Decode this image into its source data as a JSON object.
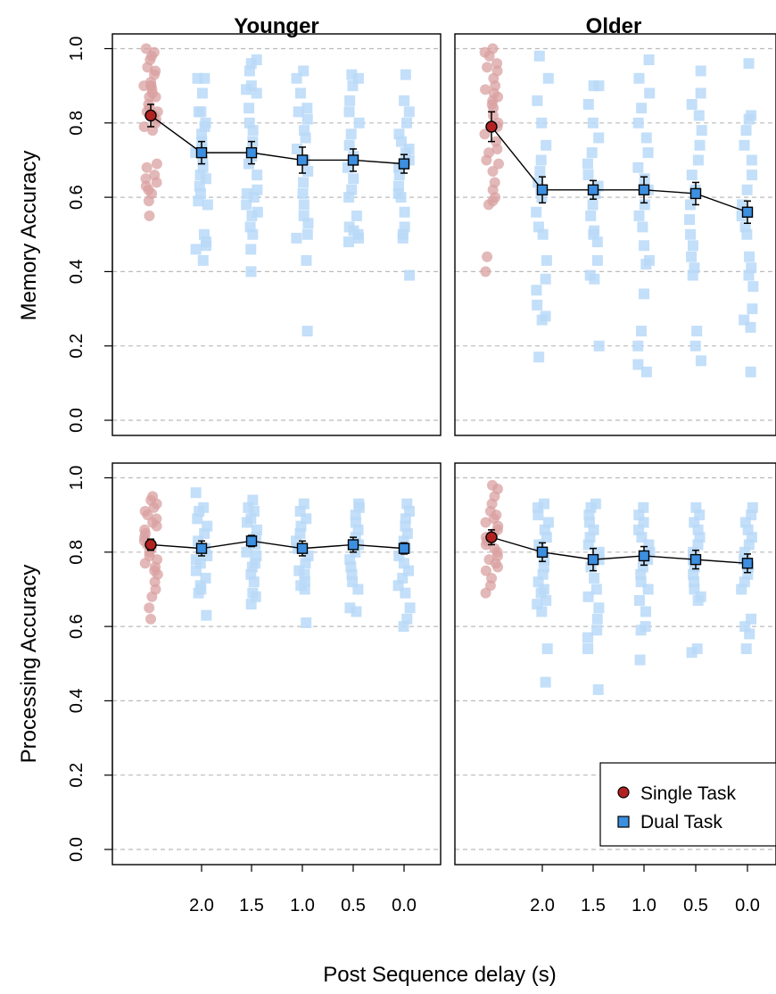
{
  "chart_data": {
    "type": "scatter",
    "xlabel": "Post Sequence delay (s)",
    "x_tick_labels": [
      "2.0",
      "1.5",
      "1.0",
      "0.5",
      "0.0"
    ],
    "y_ticks": [
      "0.0",
      "0.2",
      "0.4",
      "0.6",
      "0.8",
      "1.0"
    ],
    "ylim": [
      0,
      1
    ],
    "grid": "horizontal dashed at y ticks",
    "colors": {
      "single": "#B22222",
      "single_faded": "#D9A0A0",
      "dual": "#3D8FE0",
      "dual_faded": "#B8D9F8",
      "grid": "#BBBBBB"
    },
    "legend": {
      "position": "bottom-right",
      "entries": [
        {
          "label": "Single Task",
          "marker": "circle"
        },
        {
          "label": "Dual Task",
          "marker": "square"
        }
      ]
    },
    "columns": [
      {
        "title": "Younger"
      },
      {
        "title": "Older"
      }
    ],
    "rows": [
      {
        "ylabel": "Memory Accuracy"
      },
      {
        "ylabel": "Processing Accuracy"
      }
    ],
    "panels": [
      {
        "row": 0,
        "col": 0,
        "means": [
          0.82,
          0.72,
          0.72,
          0.7,
          0.7,
          0.69
        ],
        "errors": [
          0.03,
          0.03,
          0.03,
          0.035,
          0.03,
          0.025
        ],
        "single_points": [
          1.0,
          0.99,
          0.98,
          0.97,
          0.95,
          0.94,
          0.93,
          0.91,
          0.9,
          0.9,
          0.9,
          0.89,
          0.88,
          0.87,
          0.87,
          0.85,
          0.84,
          0.83,
          0.83,
          0.82,
          0.81,
          0.8,
          0.79,
          0.78,
          0.69,
          0.68,
          0.66,
          0.65,
          0.64,
          0.63,
          0.62,
          0.61,
          0.59,
          0.55
        ],
        "dual_points": [
          [
            0.92,
            0.92,
            0.88,
            0.83,
            0.83,
            0.8,
            0.79,
            0.77,
            0.75,
            0.73,
            0.72,
            0.7,
            0.68,
            0.66,
            0.65,
            0.63,
            0.61,
            0.59,
            0.58,
            0.5,
            0.48,
            0.47,
            0.46,
            0.43
          ],
          [
            0.97,
            0.96,
            0.94,
            0.9,
            0.89,
            0.88,
            0.84,
            0.8,
            0.78,
            0.75,
            0.71,
            0.69,
            0.66,
            0.62,
            0.61,
            0.6,
            0.58,
            0.56,
            0.55,
            0.52,
            0.5,
            0.46,
            0.4
          ],
          [
            0.94,
            0.92,
            0.88,
            0.84,
            0.83,
            0.81,
            0.78,
            0.76,
            0.73,
            0.7,
            0.67,
            0.64,
            0.61,
            0.58,
            0.55,
            0.53,
            0.5,
            0.49,
            0.43,
            0.24
          ],
          [
            0.93,
            0.92,
            0.9,
            0.86,
            0.83,
            0.8,
            0.77,
            0.74,
            0.71,
            0.68,
            0.65,
            0.62,
            0.6,
            0.55,
            0.52,
            0.51,
            0.5,
            0.49,
            0.48
          ],
          [
            0.93,
            0.86,
            0.83,
            0.8,
            0.77,
            0.75,
            0.73,
            0.72,
            0.7,
            0.68,
            0.66,
            0.63,
            0.61,
            0.6,
            0.56,
            0.52,
            0.5,
            0.49,
            0.39
          ]
        ]
      },
      {
        "row": 0,
        "col": 1,
        "means": [
          0.79,
          0.62,
          0.62,
          0.62,
          0.61,
          0.56
        ],
        "errors": [
          0.04,
          0.035,
          0.025,
          0.035,
          0.03,
          0.03
        ],
        "single_points": [
          1.0,
          0.99,
          0.98,
          0.96,
          0.95,
          0.94,
          0.92,
          0.9,
          0.89,
          0.88,
          0.87,
          0.86,
          0.85,
          0.84,
          0.82,
          0.8,
          0.79,
          0.77,
          0.75,
          0.73,
          0.72,
          0.7,
          0.69,
          0.67,
          0.64,
          0.62,
          0.6,
          0.59,
          0.58,
          0.44,
          0.4
        ],
        "dual_points": [
          [
            0.98,
            0.92,
            0.86,
            0.8,
            0.74,
            0.7,
            0.67,
            0.64,
            0.62,
            0.6,
            0.56,
            0.52,
            0.5,
            0.43,
            0.38,
            0.35,
            0.31,
            0.28,
            0.27,
            0.17
          ],
          [
            0.9,
            0.9,
            0.85,
            0.8,
            0.76,
            0.72,
            0.69,
            0.66,
            0.63,
            0.61,
            0.58,
            0.55,
            0.51,
            0.5,
            0.48,
            0.43,
            0.39,
            0.38,
            0.2
          ],
          [
            0.97,
            0.92,
            0.88,
            0.84,
            0.8,
            0.76,
            0.72,
            0.68,
            0.65,
            0.62,
            0.58,
            0.55,
            0.52,
            0.47,
            0.43,
            0.42,
            0.34,
            0.24,
            0.2,
            0.15,
            0.13
          ],
          [
            0.94,
            0.88,
            0.85,
            0.82,
            0.78,
            0.74,
            0.7,
            0.66,
            0.62,
            0.58,
            0.54,
            0.5,
            0.47,
            0.44,
            0.41,
            0.39,
            0.24,
            0.2,
            0.16
          ],
          [
            0.96,
            0.82,
            0.81,
            0.78,
            0.74,
            0.7,
            0.66,
            0.62,
            0.58,
            0.55,
            0.52,
            0.5,
            0.44,
            0.41,
            0.39,
            0.36,
            0.3,
            0.27,
            0.25,
            0.13
          ]
        ]
      },
      {
        "row": 1,
        "col": 0,
        "means": [
          0.82,
          0.81,
          0.83,
          0.81,
          0.82,
          0.81
        ],
        "errors": [
          0.015,
          0.02,
          0.015,
          0.02,
          0.02,
          0.015
        ],
        "single_points": [
          0.95,
          0.94,
          0.93,
          0.92,
          0.91,
          0.9,
          0.89,
          0.88,
          0.87,
          0.86,
          0.85,
          0.84,
          0.83,
          0.82,
          0.82,
          0.81,
          0.8,
          0.79,
          0.78,
          0.77,
          0.76,
          0.75,
          0.74,
          0.72,
          0.7,
          0.68,
          0.65,
          0.62
        ],
        "dual_points": [
          [
            0.96,
            0.92,
            0.91,
            0.89,
            0.87,
            0.85,
            0.83,
            0.81,
            0.79,
            0.78,
            0.77,
            0.75,
            0.73,
            0.71,
            0.7,
            0.69,
            0.63
          ],
          [
            0.94,
            0.92,
            0.91,
            0.89,
            0.88,
            0.86,
            0.84,
            0.82,
            0.8,
            0.79,
            0.77,
            0.76,
            0.74,
            0.72,
            0.69,
            0.68,
            0.66
          ],
          [
            0.93,
            0.91,
            0.89,
            0.87,
            0.85,
            0.83,
            0.81,
            0.79,
            0.77,
            0.75,
            0.74,
            0.72,
            0.71,
            0.7,
            0.61
          ],
          [
            0.93,
            0.92,
            0.9,
            0.88,
            0.86,
            0.84,
            0.82,
            0.8,
            0.78,
            0.76,
            0.74,
            0.72,
            0.7,
            0.65,
            0.64
          ],
          [
            0.93,
            0.91,
            0.89,
            0.87,
            0.85,
            0.83,
            0.81,
            0.79,
            0.77,
            0.75,
            0.73,
            0.71,
            0.69,
            0.65,
            0.62,
            0.6
          ]
        ]
      },
      {
        "row": 1,
        "col": 1,
        "means": [
          0.84,
          0.8,
          0.78,
          0.79,
          0.78,
          0.77
        ],
        "errors": [
          0.02,
          0.025,
          0.03,
          0.025,
          0.025,
          0.025
        ],
        "single_points": [
          0.98,
          0.97,
          0.95,
          0.93,
          0.91,
          0.9,
          0.89,
          0.88,
          0.87,
          0.86,
          0.85,
          0.84,
          0.83,
          0.82,
          0.81,
          0.8,
          0.79,
          0.78,
          0.77,
          0.76,
          0.75,
          0.73,
          0.71,
          0.69
        ],
        "dual_points": [
          [
            0.93,
            0.92,
            0.9,
            0.88,
            0.86,
            0.84,
            0.82,
            0.8,
            0.78,
            0.76,
            0.74,
            0.72,
            0.7,
            0.69,
            0.67,
            0.66,
            0.64,
            0.54,
            0.45
          ],
          [
            0.93,
            0.92,
            0.9,
            0.88,
            0.86,
            0.84,
            0.82,
            0.8,
            0.78,
            0.76,
            0.73,
            0.7,
            0.68,
            0.65,
            0.62,
            0.59,
            0.57,
            0.54,
            0.43
          ],
          [
            0.92,
            0.9,
            0.88,
            0.86,
            0.84,
            0.82,
            0.8,
            0.78,
            0.76,
            0.74,
            0.72,
            0.7,
            0.67,
            0.64,
            0.6,
            0.59,
            0.51
          ],
          [
            0.92,
            0.9,
            0.88,
            0.86,
            0.84,
            0.82,
            0.8,
            0.78,
            0.76,
            0.74,
            0.72,
            0.7,
            0.68,
            0.67,
            0.54,
            0.53
          ],
          [
            0.92,
            0.9,
            0.88,
            0.86,
            0.84,
            0.82,
            0.8,
            0.78,
            0.76,
            0.74,
            0.72,
            0.7,
            0.62,
            0.6,
            0.58,
            0.54
          ]
        ]
      }
    ]
  }
}
